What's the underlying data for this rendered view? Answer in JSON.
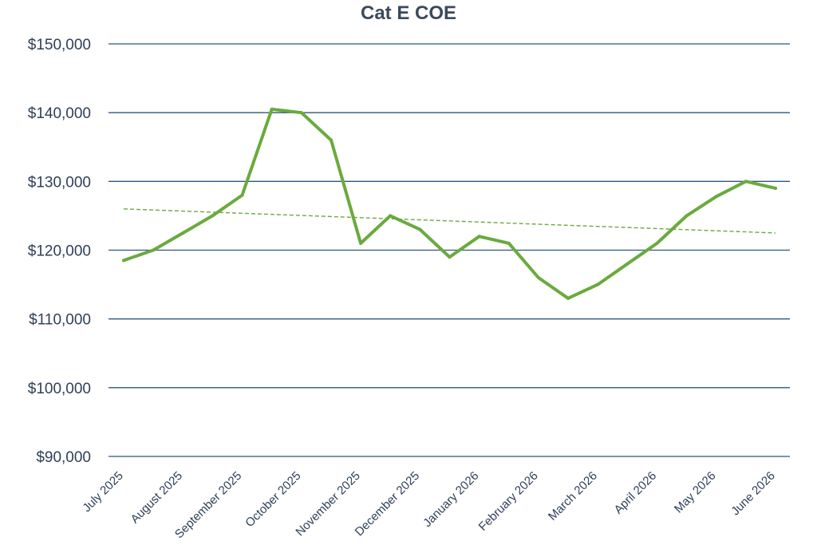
{
  "chart_data": {
    "type": "line",
    "title": "Cat E COE",
    "xlabel": "",
    "ylabel": "",
    "ylim": [
      90000,
      150000
    ],
    "y_ticks": [
      {
        "value": 150000,
        "label": "$150,000"
      },
      {
        "value": 140000,
        "label": "$140,000"
      },
      {
        "value": 130000,
        "label": "$130,000"
      },
      {
        "value": 120000,
        "label": "$120,000"
      },
      {
        "value": 110000,
        "label": "$110,000"
      },
      {
        "value": 100000,
        "label": "$100,000"
      },
      {
        "value": 90000,
        "label": "$90,000"
      }
    ],
    "categories": [
      "July 2025",
      "August 2025",
      "September 2025",
      "October 2025",
      "November 2025",
      "December 2025",
      "January 2026",
      "February 2026",
      "March 2026",
      "April 2026",
      "May 2026",
      "June 2026"
    ],
    "grid": true,
    "legend": "none",
    "series": [
      {
        "color": "#6aaa3e",
        "x": [
          0,
          0.5,
          1,
          1.5,
          2,
          2.5,
          3,
          3.5,
          4,
          4.5,
          5,
          5.5,
          6,
          6.5,
          7,
          7.5,
          8,
          8.5,
          9,
          9.5,
          10,
          10.5,
          11
        ],
        "values": [
          118500,
          120000,
          122500,
          125000,
          128000,
          140500,
          140000,
          136000,
          121000,
          125000,
          123000,
          119000,
          122000,
          121000,
          116000,
          113000,
          115000,
          118000,
          121000,
          125000,
          127800,
          130000,
          129000
        ]
      }
    ],
    "trendline": {
      "type": "linear",
      "color": "#6aaa3e",
      "style": "dashed",
      "start": 126000,
      "end": 122500
    },
    "colors": {
      "gridline": "#2f5581",
      "text": "#2f4058",
      "title": "#3b4a5c"
    }
  }
}
